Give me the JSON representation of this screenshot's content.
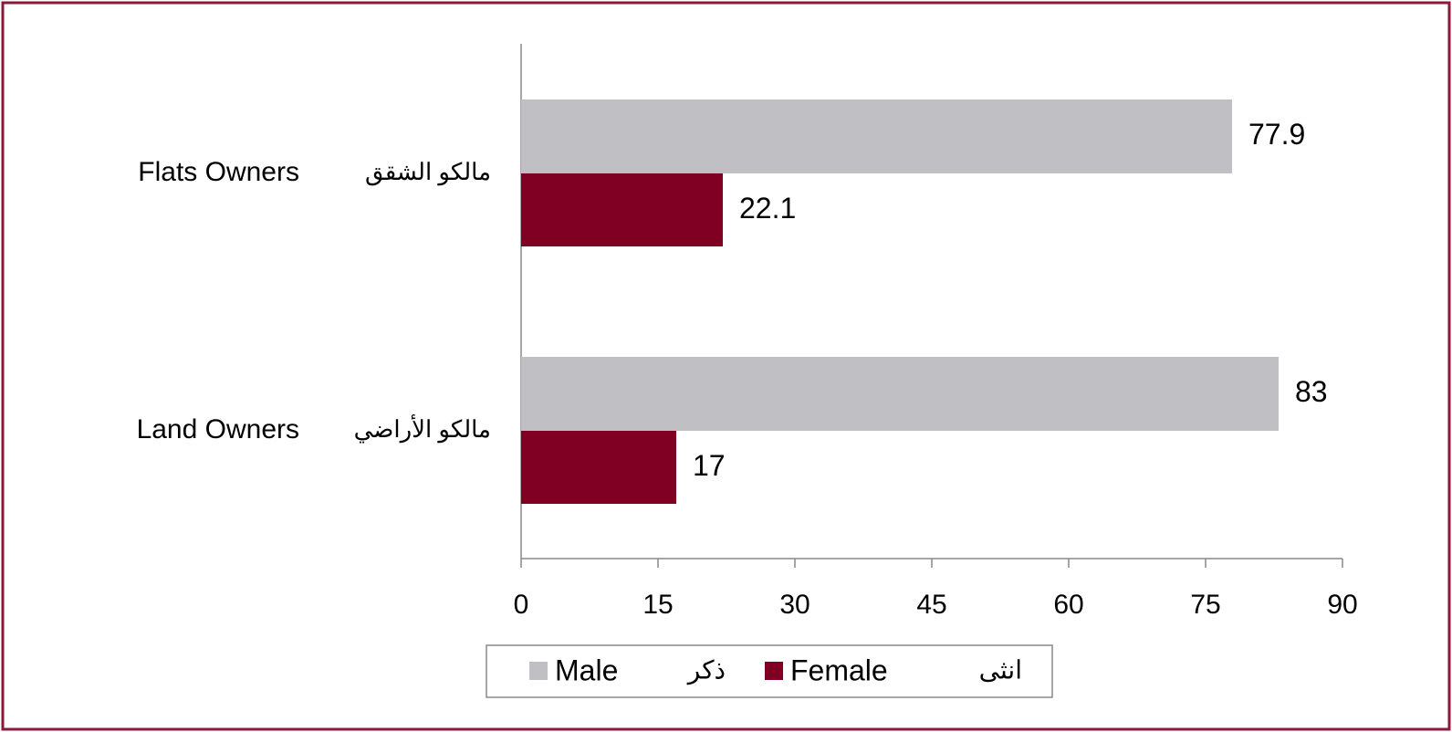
{
  "chart_data": {
    "type": "hbar",
    "categories": [
      "Flats Owners",
      "Land Owners"
    ],
    "categories_ar": [
      "مالكو الشقق",
      "مالكو الأراضي"
    ],
    "series": [
      {
        "name": "Male",
        "name_ar": "ذكر",
        "color": "#bfbfc4",
        "values": [
          77.9,
          83
        ]
      },
      {
        "name": "Female",
        "name_ar": "انثى",
        "color": "#7f0022",
        "values": [
          22.1,
          17
        ]
      }
    ],
    "xlim": [
      0,
      90
    ],
    "xticks": [
      0,
      15,
      30,
      45,
      60,
      75,
      90
    ]
  }
}
